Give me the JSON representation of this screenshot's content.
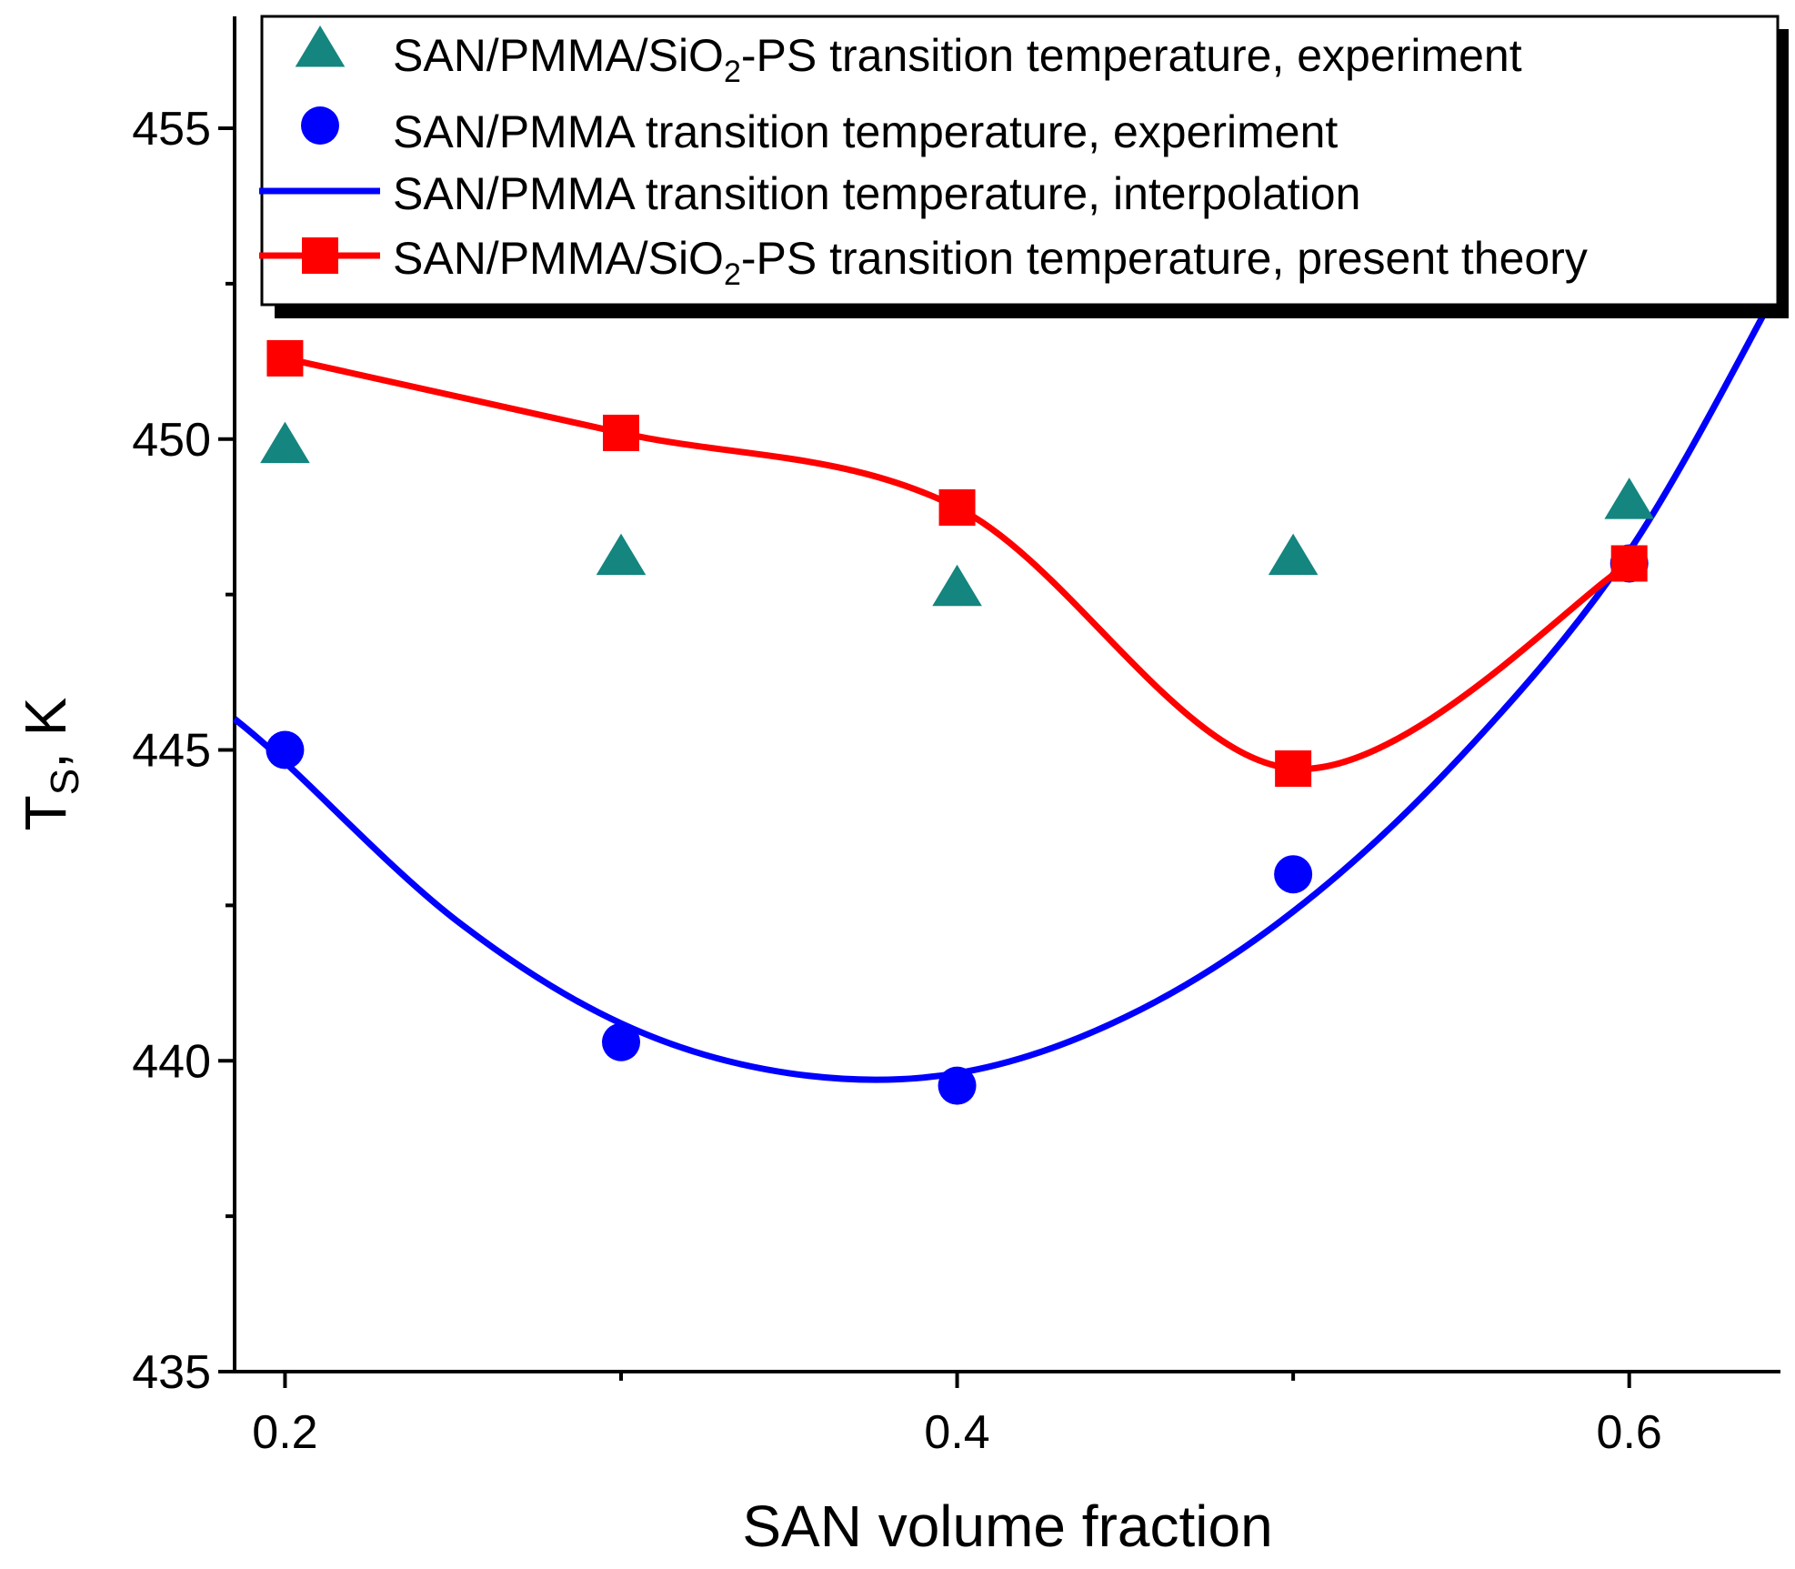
{
  "chart_data": {
    "type": "scatter",
    "title": "",
    "xlabel": "SAN volume fraction",
    "ylabel": {
      "main": "T",
      "sub": "S",
      "unit": ", K"
    },
    "xlim": [
      0.185,
      0.645
    ],
    "ylim": [
      435,
      456.8
    ],
    "x_ticks": [
      0.2,
      0.4,
      0.6
    ],
    "x_tick_labels": [
      "0.2",
      "0.4",
      "0.6"
    ],
    "y_ticks": [
      435,
      440,
      445,
      450,
      455
    ],
    "y_tick_labels": [
      "435",
      "440",
      "445",
      "450",
      "455"
    ],
    "grid": false,
    "legend_position": "top",
    "colors": {
      "triangle": "#14857f",
      "circle": "#0000ff",
      "blue_line": "#0000ff",
      "red": "#ff0000"
    },
    "series": [
      {
        "name": "SAN/PMMA/SiO2-PS transition temperature, experiment",
        "legend": {
          "pre": "SAN/PMMA/SiO",
          "sub": "2",
          "post": "-PS transition temperature, experiment"
        },
        "marker": "triangle",
        "x": [
          0.2,
          0.3,
          0.4,
          0.5,
          0.6
        ],
        "y": [
          449.9,
          448.1,
          447.6,
          448.1,
          449.0
        ]
      },
      {
        "name": "SAN/PMMA transition temperature, experiment",
        "legend": {
          "pre": "SAN/PMMA transition temperature, experiment",
          "sub": "",
          "post": ""
        },
        "marker": "circle",
        "x": [
          0.2,
          0.3,
          0.4,
          0.5,
          0.6
        ],
        "y": [
          445.0,
          440.3,
          439.6,
          443.0,
          448.0
        ]
      },
      {
        "name": "SAN/PMMA transition temperature, interpolation",
        "legend": {
          "pre": "SAN/PMMA transition temperature, interpolation",
          "sub": "",
          "post": ""
        },
        "marker": "line",
        "x": [
          0.185,
          0.2,
          0.25,
          0.3,
          0.35,
          0.4,
          0.45,
          0.5,
          0.55,
          0.6,
          0.645
        ],
        "y": [
          445.5,
          444.8,
          442.3,
          440.6,
          439.8,
          439.8,
          440.7,
          442.4,
          444.9,
          448.2,
          452.5
        ]
      },
      {
        "name": "SAN/PMMA/SiO2-PS transition temperature, present theory",
        "legend": {
          "pre": "SAN/PMMA/SiO",
          "sub": "2",
          "post": "-PS transition temperature, present theory"
        },
        "marker": "line-square",
        "x": [
          0.2,
          0.3,
          0.4,
          0.5,
          0.6
        ],
        "y": [
          451.3,
          450.1,
          448.9,
          444.7,
          448.0
        ]
      }
    ]
  }
}
